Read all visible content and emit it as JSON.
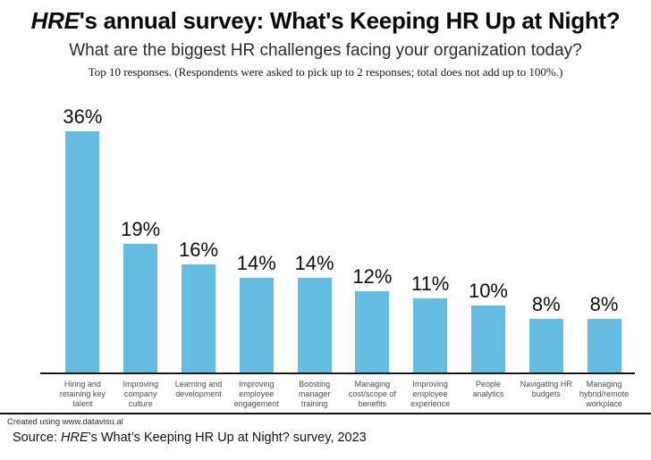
{
  "header": {
    "title_brand": "HRE",
    "title_rest": "'s annual survey: What's Keeping HR Up at Night?",
    "subtitle": "What are the biggest HR challenges facing your organization today?",
    "note": "Top 10 responses. (Respondents were asked to pick up to 2 responses; total does not add up to 100%.)"
  },
  "chart_data": {
    "type": "bar",
    "orientation": "vertical",
    "categories": [
      "Hiring and retaining key talent",
      "Improving company culture",
      "Learning and development",
      "Improving employee engagement",
      "Boosting manager training",
      "Managing cost/scope of benefits",
      "Improving employee experience",
      "People analytics",
      "Navigating HR budgets",
      "Managing hybrid/remote workplace"
    ],
    "values": [
      36,
      19,
      16,
      14,
      14,
      12,
      11,
      10,
      8,
      8
    ],
    "value_labels": [
      "36%",
      "19%",
      "16%",
      "14%",
      "14%",
      "12%",
      "11%",
      "10%",
      "8%",
      "8%"
    ],
    "title": "What are the biggest HR challenges facing your organization today?",
    "xlabel": "",
    "ylabel": "",
    "ylim": [
      0,
      36
    ],
    "grid": false,
    "legend": false,
    "bar_color": "#66BDE2",
    "axis_color": "#1A1A1A"
  },
  "footer": {
    "credit": "Created using www.datavisu.al",
    "source_prefix": "Source: ",
    "source_brand": "HRE",
    "source_rest": "’s What’s Keeping HR Up at Night? survey, 2023"
  },
  "colors": {
    "background": "#FFFFFF",
    "bar": "#66BDE2",
    "text": "#111111"
  }
}
